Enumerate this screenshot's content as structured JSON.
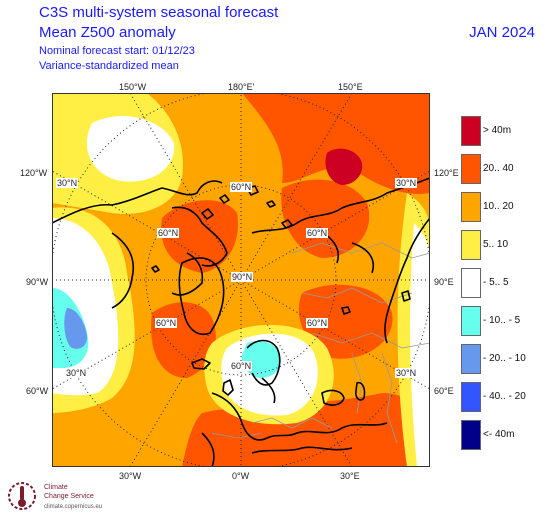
{
  "header": {
    "title": "C3S multi-system seasonal forecast",
    "variable": "Mean Z500 anomaly",
    "start": "Nominal forecast start: 01/12/23",
    "method": "Variance-standardized mean",
    "valid": "JAN 2024"
  },
  "map": {
    "lon_labels": {
      "top_left": "150°W",
      "top_mid": "180°E'",
      "top_right": "150°E",
      "left_upper": "120°W",
      "left_mid": "90°W",
      "left_lower": "60°W",
      "right_upper": "120°E",
      "right_mid": "90°E",
      "right_lower": "60°E",
      "bot_left": "30°W",
      "bot_mid": "0°W",
      "bot_right": "30°E"
    },
    "lat_labels": [
      "60°N",
      "60°N",
      "60°N",
      "60°N",
      "60°N",
      "60°N",
      "90°N",
      "30°N",
      "30°N",
      "30°N",
      "30°N"
    ],
    "colors": {
      "dark_orange": "#ff5500",
      "orange": "#ffa500",
      "yellow": "#ffee44",
      "cyan": "#66ffee",
      "light_blue": "#6699ee",
      "dark_red": "#cc0022"
    }
  },
  "legend": {
    "items": [
      {
        "label": ">  40m",
        "color": "#cc0022"
      },
      {
        "label": "20.. 40",
        "color": "#ff5500"
      },
      {
        "label": "10.. 20",
        "color": "#ffa500"
      },
      {
        "label": "5.. 10",
        "color": "#ffee44"
      },
      {
        "label": "- 5.. 5",
        "color": "#ffffff"
      },
      {
        "label": "- 10.. - 5",
        "color": "#66ffee"
      },
      {
        "label": "- 20.. - 10",
        "color": "#6699ee"
      },
      {
        "label": "- 40.. - 20",
        "color": "#3355ff"
      },
      {
        "label": "<- 40m",
        "color": "#000088"
      }
    ]
  },
  "logo": {
    "line1": "Climate",
    "line2": "Change Service",
    "line3": "climate.copernicus.eu"
  }
}
